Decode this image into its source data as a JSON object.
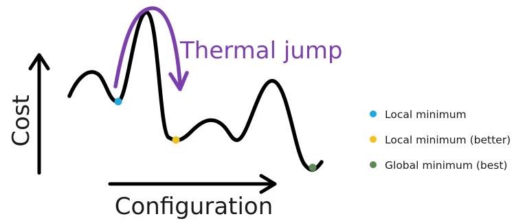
{
  "labels": {
    "cost_axis": "Cost",
    "configuration_axis": "Configuration",
    "thermal_jump": "Thermal jump"
  },
  "legend": {
    "items": [
      {
        "label": "Local minimum",
        "color": "#1fa8e0"
      },
      {
        "label": "Local minimum (better)",
        "color": "#f2c21a"
      },
      {
        "label": "Global minimum (best)",
        "color": "#5b8a55"
      }
    ]
  },
  "colors": {
    "curve": "#000000",
    "arrow": "#7b3fae",
    "axes": "#000000",
    "text": "#1a1a1a"
  }
}
